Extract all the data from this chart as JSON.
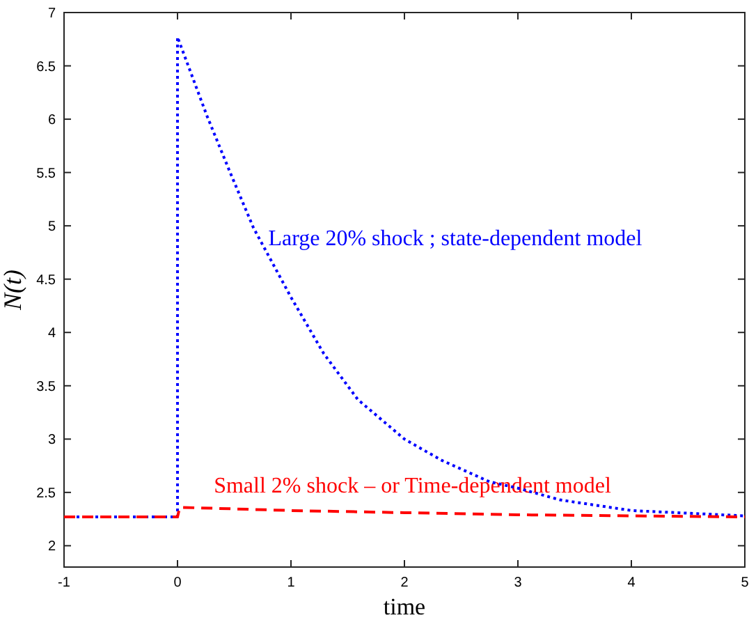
{
  "chart_data": {
    "type": "line",
    "xlabel": "time",
    "ylabel": "N(t)",
    "xlim": [
      -1,
      5
    ],
    "ylim": [
      1.8,
      7
    ],
    "xticks": [
      -1,
      0,
      1,
      2,
      3,
      4,
      5
    ],
    "yticks": [
      2,
      2.5,
      3,
      3.5,
      4,
      4.5,
      5,
      5.5,
      6,
      6.5,
      7
    ],
    "grid": false,
    "series": [
      {
        "color": "#0000ff",
        "line_style": "dotted",
        "x": [
          -1,
          0,
          0,
          0.26,
          0.46,
          0.67,
          1,
          1.29,
          1.59,
          2,
          2.33,
          2.75,
          3,
          3.37,
          4,
          5
        ],
        "values": [
          2.27,
          2.27,
          6.77,
          6.03,
          5.51,
          4.98,
          4.33,
          3.8,
          3.37,
          3.0,
          2.8,
          2.6,
          2.54,
          2.43,
          2.33,
          2.28
        ]
      },
      {
        "color": "#ff0000",
        "line_style": "dashed",
        "x": [
          -1,
          0,
          0.02,
          1,
          2,
          3,
          4,
          5
        ],
        "values": [
          2.27,
          2.27,
          2.36,
          2.33,
          2.31,
          2.29,
          2.28,
          2.27
        ]
      }
    ],
    "annotations": [
      "Large 20% shock ; state-dependent model",
      "Small 2% shock – or Time-dependent model"
    ]
  }
}
